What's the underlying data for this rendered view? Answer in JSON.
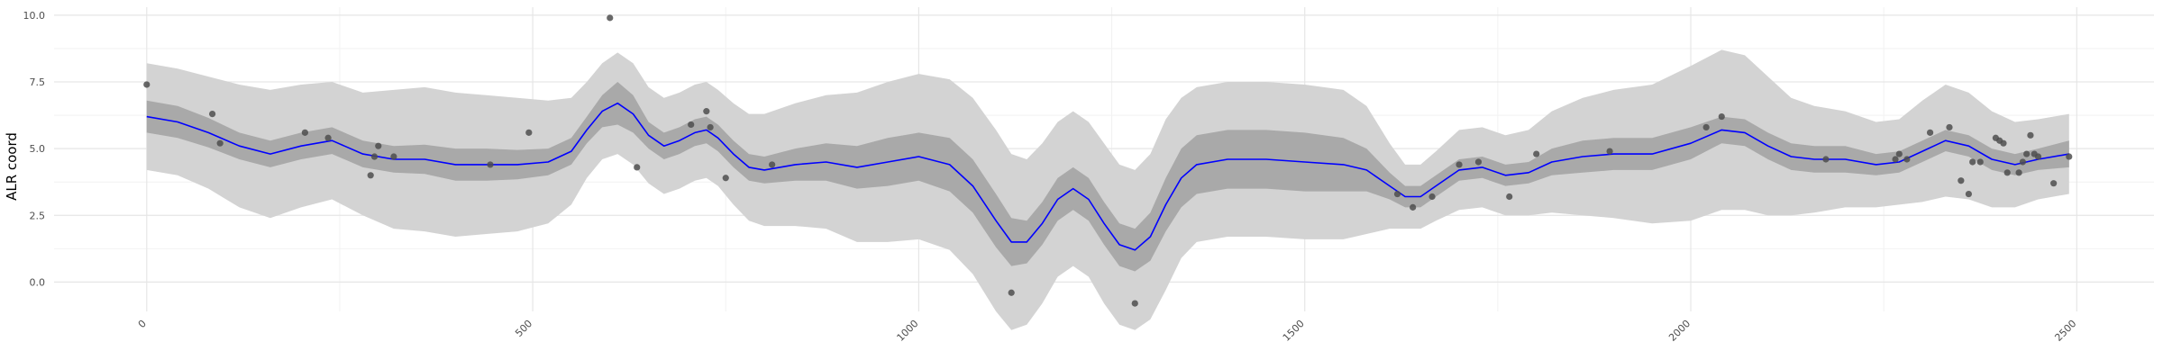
{
  "chart_data": {
    "type": "line",
    "title": "",
    "xlabel": "",
    "ylabel": "ALR coord",
    "xlim": [
      -120,
      2600
    ],
    "ylim": [
      -1.1,
      10.3
    ],
    "x_ticks": [
      0,
      500,
      1000,
      1500,
      2000,
      2500
    ],
    "x_tick_labels": [
      "0",
      "500",
      "1000",
      "1500",
      "2000",
      "2500"
    ],
    "x_tick_rotation_deg": -45,
    "y_ticks": [
      0.0,
      2.5,
      5.0,
      7.5,
      10.0
    ],
    "y_tick_labels": [
      "0.0",
      "2.5",
      "5.0",
      "7.5",
      "10.0"
    ],
    "grid": true,
    "legend": "none",
    "colors": {
      "mean_line": "#0000ff",
      "inner_band": "#a9a9a9",
      "outer_band": "#d3d3d3",
      "points": "#4d4d4d",
      "grid_major": "#e6e6e6",
      "grid_minor": "#f2f2f2"
    },
    "series": [
      {
        "kind": "mean",
        "x": [
          0,
          40,
          80,
          120,
          160,
          200,
          240,
          280,
          320,
          360,
          400,
          440,
          480,
          520,
          550,
          570,
          590,
          610,
          630,
          650,
          670,
          690,
          710,
          725,
          740,
          760,
          780,
          800,
          840,
          880,
          920,
          960,
          1000,
          1040,
          1070,
          1100,
          1120,
          1140,
          1160,
          1180,
          1200,
          1220,
          1240,
          1260,
          1280,
          1300,
          1320,
          1340,
          1360,
          1400,
          1450,
          1500,
          1550,
          1580,
          1610,
          1630,
          1650,
          1670,
          1700,
          1730,
          1760,
          1790,
          1820,
          1860,
          1900,
          1950,
          2000,
          2040,
          2070,
          2100,
          2130,
          2160,
          2200,
          2240,
          2270,
          2300,
          2330,
          2360,
          2390,
          2420,
          2450,
          2490
        ],
        "y": [
          6.2,
          6.0,
          5.6,
          5.1,
          4.8,
          5.1,
          5.3,
          4.8,
          4.6,
          4.6,
          4.4,
          4.4,
          4.4,
          4.5,
          4.9,
          5.7,
          6.4,
          6.7,
          6.3,
          5.5,
          5.1,
          5.3,
          5.6,
          5.7,
          5.4,
          4.8,
          4.3,
          4.2,
          4.4,
          4.5,
          4.3,
          4.5,
          4.7,
          4.4,
          3.6,
          2.3,
          1.5,
          1.5,
          2.2,
          3.1,
          3.5,
          3.1,
          2.2,
          1.4,
          1.2,
          1.7,
          2.9,
          3.9,
          4.4,
          4.6,
          4.6,
          4.5,
          4.4,
          4.2,
          3.6,
          3.2,
          3.2,
          3.6,
          4.2,
          4.3,
          4.0,
          4.1,
          4.5,
          4.7,
          4.8,
          4.8,
          5.2,
          5.7,
          5.6,
          5.1,
          4.7,
          4.6,
          4.6,
          4.4,
          4.5,
          4.9,
          5.3,
          5.1,
          4.6,
          4.4,
          4.6,
          4.8
        ],
        "inner_band_halfwidth": [
          0.6,
          0.6,
          0.55,
          0.5,
          0.5,
          0.5,
          0.5,
          0.5,
          0.5,
          0.55,
          0.6,
          0.6,
          0.55,
          0.5,
          0.5,
          0.5,
          0.6,
          0.8,
          0.7,
          0.5,
          0.5,
          0.5,
          0.5,
          0.5,
          0.5,
          0.5,
          0.5,
          0.5,
          0.6,
          0.7,
          0.8,
          0.9,
          0.9,
          1.0,
          1.0,
          1.0,
          0.9,
          0.8,
          0.8,
          0.8,
          0.8,
          0.8,
          0.8,
          0.8,
          0.8,
          0.9,
          1.0,
          1.1,
          1.1,
          1.1,
          1.1,
          1.1,
          1.0,
          0.8,
          0.5,
          0.4,
          0.4,
          0.4,
          0.4,
          0.4,
          0.4,
          0.4,
          0.5,
          0.6,
          0.6,
          0.6,
          0.6,
          0.5,
          0.5,
          0.5,
          0.5,
          0.5,
          0.5,
          0.4,
          0.4,
          0.4,
          0.4,
          0.4,
          0.4,
          0.4,
          0.4,
          0.5
        ],
        "outer_band_halfwidth": [
          2.0,
          2.0,
          2.1,
          2.3,
          2.4,
          2.3,
          2.2,
          2.3,
          2.6,
          2.7,
          2.7,
          2.6,
          2.5,
          2.3,
          2.0,
          1.8,
          1.8,
          1.9,
          1.9,
          1.8,
          1.8,
          1.8,
          1.8,
          1.8,
          1.8,
          1.9,
          2.0,
          2.1,
          2.3,
          2.5,
          2.8,
          3.0,
          3.1,
          3.2,
          3.3,
          3.4,
          3.3,
          3.1,
          3.0,
          2.9,
          2.9,
          2.9,
          3.0,
          3.0,
          3.0,
          3.1,
          3.2,
          3.0,
          2.9,
          2.9,
          2.9,
          2.9,
          2.8,
          2.4,
          1.6,
          1.2,
          1.2,
          1.3,
          1.5,
          1.5,
          1.5,
          1.6,
          1.9,
          2.2,
          2.4,
          2.6,
          2.9,
          3.0,
          2.9,
          2.6,
          2.2,
          2.0,
          1.8,
          1.6,
          1.6,
          1.9,
          2.1,
          2.0,
          1.8,
          1.6,
          1.5,
          1.5
        ]
      },
      {
        "kind": "points",
        "x": [
          0,
          85,
          95,
          205,
          235,
          290,
          295,
          300,
          320,
          445,
          495,
          600,
          635,
          705,
          725,
          730,
          750,
          810,
          1120,
          1280,
          1620,
          1640,
          1665,
          1700,
          1725,
          1765,
          1800,
          1895,
          2020,
          2040,
          2175,
          2265,
          2270,
          2280,
          2310,
          2335,
          2350,
          2360,
          2365,
          2375,
          2395,
          2400,
          2405,
          2410,
          2425,
          2430,
          2435,
          2440,
          2445,
          2450,
          2470,
          2490
        ],
        "y": [
          7.4,
          6.3,
          5.2,
          5.6,
          5.4,
          4.0,
          4.7,
          5.1,
          4.7,
          4.4,
          5.6,
          9.9,
          4.3,
          5.9,
          6.4,
          5.8,
          3.9,
          4.4,
          -0.4,
          -0.8,
          3.3,
          2.8,
          3.2,
          4.4,
          4.5,
          3.2,
          4.8,
          4.9,
          5.8,
          6.2,
          4.6,
          4.6,
          4.8,
          4.6,
          5.6,
          5.8,
          3.8,
          3.3,
          4.5,
          4.5,
          5.4,
          5.3,
          5.2,
          4.1,
          4.1,
          4.5,
          4.8,
          5.5,
          4.8,
          4.7,
          3.7,
          4.7
        ]
      }
    ]
  }
}
